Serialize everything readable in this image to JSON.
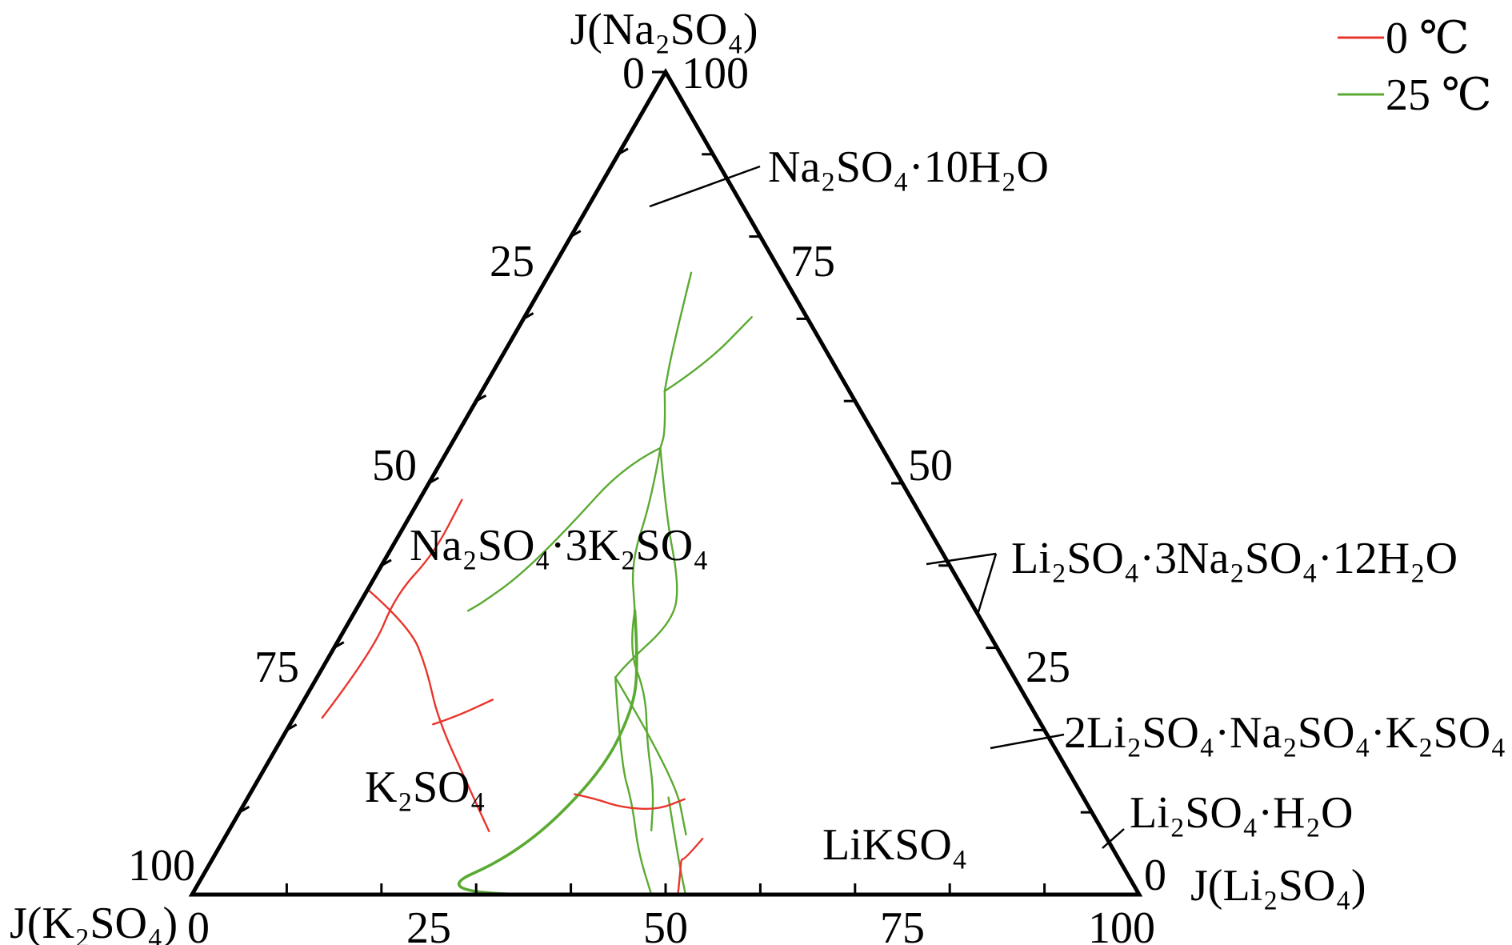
{
  "chart_data": {
    "type": "ternary",
    "axes": {
      "top": {
        "label": "J(Na₂SO₄)"
      },
      "left": {
        "label": "J(K₂SO₄)"
      },
      "right": {
        "label": "J(Li₂SO₄)"
      }
    },
    "range": [
      0,
      100
    ],
    "ticks": [
      0,
      25,
      50,
      75,
      100
    ],
    "tick_labels": {
      "bottom": [
        "0",
        "25",
        "50",
        "75",
        "100"
      ],
      "left": [
        "100",
        "75",
        "50",
        "25"
      ],
      "right": [
        "0",
        "25",
        "50",
        "75"
      ],
      "apex": [
        "0",
        "100"
      ]
    },
    "legend": [
      {
        "label": "0 ℃",
        "color": "#e8352c"
      },
      {
        "label": "25 ℃",
        "color": "#5aaa32"
      }
    ],
    "legend_position": "top-right",
    "regions": [
      {
        "key": "na10",
        "label": "Na₂SO₄·10H₂O"
      },
      {
        "key": "glaserite",
        "label": "Na₂SO₄·3K₂SO₄"
      },
      {
        "key": "k2so4",
        "label": "K₂SO₄"
      },
      {
        "key": "liKso4",
        "label": "LiKSO₄"
      },
      {
        "key": "li3na",
        "label": "Li₂SO₄·3Na₂SO₄·12H₂O"
      },
      {
        "key": "double",
        "label": "2Li₂SO₄·Na₂SO₄·K₂SO₄"
      },
      {
        "key": "lih2o",
        "label": "Li₂SO₄·H₂O"
      }
    ],
    "series": [
      {
        "temperature": "25 ℃",
        "color": "#5aaa32",
        "curves": [
          {
            "points": [
              [
                75.6,
                14.9
              ],
              [
                66.5,
                17.5
              ],
              [
                61.2,
                19.3
              ]
            ]
          },
          {
            "points": [
              [
                61.2,
                19.3
              ],
              [
                64.5,
                22.0
              ],
              [
                70.2,
                24.0
              ]
            ]
          },
          {
            "points": [
              [
                61.2,
                19.3
              ],
              [
                56.4,
                21.8
              ],
              [
                54.3,
                22.3
              ]
            ]
          },
          {
            "points": [
              [
                54.3,
                22.3
              ],
              [
                52.2,
                19.6
              ],
              [
                44.5,
                17.4
              ],
              [
                38.7,
                15.2
              ],
              [
                35.5,
                12.9
              ],
              [
                34.5,
                11.9
              ]
            ]
          },
          {
            "points": [
              [
                54.3,
                22.3
              ],
              [
                46.4,
                26.8
              ],
              [
                37.5,
                32.7
              ],
              [
                33.2,
                34.1
              ],
              [
                28.1,
                31.9
              ],
              [
                26.4,
                31.5
              ]
            ]
          },
          {
            "points": [
              [
                54.3,
                22.3
              ],
              [
                48.0,
                24.5
              ],
              [
                40.6,
                26.1
              ],
              [
                34.5,
                29.5
              ]
            ]
          },
          {
            "points": [
              [
                34.5,
                29.5
              ],
              [
                29.8,
                31.2
              ],
              [
                24.4,
                35.7
              ],
              [
                18.3,
                38.9
              ],
              [
                12.7,
                42.4
              ],
              [
                7.8,
                44.6
              ]
            ]
          },
          {
            "points": [
              [
                34.5,
                29.5
              ],
              [
                28.0,
                33.1
              ],
              [
                22.5,
                35.3
              ],
              [
                14.6,
                35.8
              ],
              [
                5.1,
                32.1
              ],
              [
                0,
                24.6
              ],
              [
                0,
                49.4
              ]
            ],
            "bold": true
          },
          {
            "points": [
              [
                26.4,
                31.5
              ],
              [
                16.1,
                37.2
              ],
              [
                11.0,
                41.0
              ],
              [
                5.2,
                44.5
              ],
              [
                0,
                48.5
              ]
            ]
          },
          {
            "points": [
              [
                26.4,
                31.5
              ],
              [
                14.3,
                43.8
              ],
              [
                7.3,
                48.5
              ]
            ]
          },
          {
            "points": [
              [
                11.8,
                44.4
              ],
              [
                4.6,
                49.0
              ],
              [
                0,
                52.1
              ]
            ]
          }
        ]
      },
      {
        "temperature": "0 ℃",
        "color": "#e8352c",
        "curves": [
          {
            "points": [
              [
                37.1,
                0.0
              ],
              [
                32.6,
                6.7
              ],
              [
                27.4,
                11.1
              ],
              [
                21.2,
                15.4
              ],
              [
                12.5,
                23.2
              ],
              [
                7.7,
                27.5
              ]
            ]
          },
          {
            "points": [
              [
                12.2,
                34.3
              ],
              [
                11.7,
                36.6
              ],
              [
                10.6,
                40.0
              ],
              [
                10.3,
                44.0
              ],
              [
                11.6,
                46.2
              ]
            ]
          },
          {
            "points": [
              [
                6.8,
                50.5
              ],
              [
                4.4,
                49.9
              ],
              [
                4.3,
                49.5
              ],
              [
                3.4,
                49.9
              ],
              [
                0,
                51.3
              ]
            ]
          },
          {
            "points": [
              [
                20.7,
                15.1
              ],
              [
                21.6,
                17.0
              ],
              [
                23.7,
                19.9
              ]
            ]
          },
          {
            "points": [
              [
                21.5,
                3.0
              ],
              [
                29.5,
                4.3
              ],
              [
                36.4,
                3.3
              ],
              [
                41.4,
                4.8
              ],
              [
                48.0,
                4.5
              ]
            ]
          }
        ]
      }
    ]
  }
}
